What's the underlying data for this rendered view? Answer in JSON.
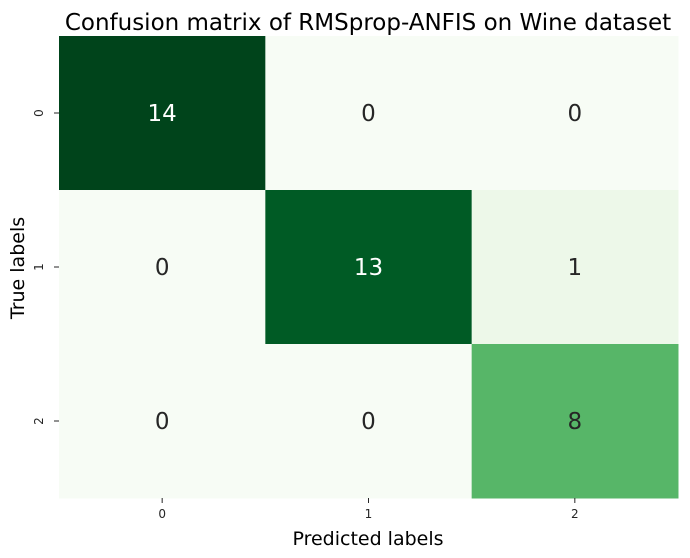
{
  "chart_data": {
    "type": "heatmap",
    "title": "Confusion matrix of RMSprop-ANFIS on Wine dataset",
    "xlabel": "Predicted labels",
    "ylabel": "True labels",
    "x_categories": [
      "0",
      "1",
      "2"
    ],
    "y_categories": [
      "0",
      "1",
      "2"
    ],
    "values": [
      [
        14,
        0,
        0
      ],
      [
        0,
        13,
        1
      ],
      [
        0,
        0,
        8
      ]
    ],
    "colormap": "Greens",
    "vmin": 0,
    "vmax": 14,
    "colorbar": false,
    "grid": false
  },
  "colors": {
    "background": "#ffffff",
    "text_dark": "#262626",
    "text_light": "#ffffff",
    "tick": "#262626"
  }
}
